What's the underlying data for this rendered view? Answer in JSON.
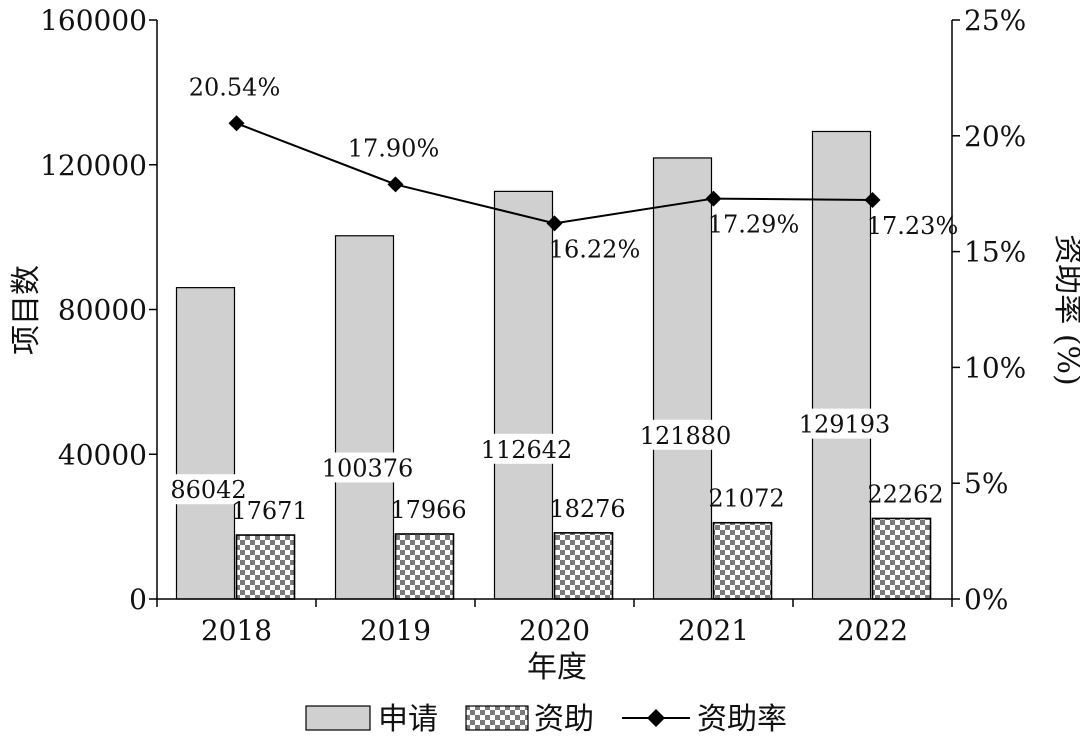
{
  "chart_data": {
    "type": "bar",
    "categories": [
      "2018",
      "2019",
      "2020",
      "2021",
      "2022"
    ],
    "series": [
      {
        "name": "申请",
        "type": "bar",
        "axis": "left",
        "values": [
          86042,
          100376,
          112642,
          121880,
          129193
        ],
        "color": "#d0d0d0"
      },
      {
        "name": "资助",
        "type": "bar",
        "axis": "left",
        "values": [
          17671,
          17966,
          18276,
          21072,
          22262
        ],
        "pattern": "checker",
        "color": "#777777"
      },
      {
        "name": "资助率",
        "type": "line",
        "axis": "right",
        "values": [
          20.54,
          17.9,
          16.22,
          17.29,
          17.23
        ],
        "color": "#000000",
        "marker": "diamond"
      }
    ],
    "rate_labels": [
      "20.54%",
      "17.90%",
      "16.22%",
      "17.29%",
      "17.23%"
    ],
    "xlabel": "年度",
    "ylabel": "项目数",
    "y2label": "资助率 (%)",
    "ylim": [
      0,
      160000
    ],
    "y2lim": [
      0,
      25
    ],
    "yticks": [
      "0",
      "40000",
      "80000",
      "120000",
      "160000"
    ],
    "y2ticks": [
      "0%",
      "5%",
      "10%",
      "15%",
      "20%",
      "25%"
    ],
    "grid": false,
    "legend_position": "bottom"
  }
}
